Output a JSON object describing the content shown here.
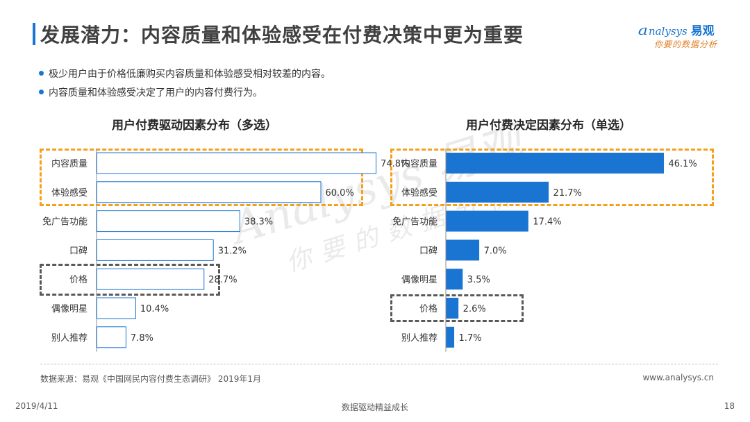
{
  "header": {
    "title": "发展潜力：内容质量和体验感受在付费决策中更为重要",
    "logo_mark": "a",
    "logo_word": "nalysys",
    "logo_cn": "易观",
    "logo_slogan": "你要的数据分析"
  },
  "bullets": [
    "极少用户由于价格低廉购买内容质量和体验感受相对较差的内容。",
    "内容质量和体验感受决定了用户的内容付费行为。"
  ],
  "watermark": {
    "line1": "Analysys 易观",
    "line2": "你要的数据分析"
  },
  "chart_data": [
    {
      "type": "bar",
      "orientation": "horizontal",
      "title": "用户付费驱动因素分布（多选）",
      "categories": [
        "内容质量",
        "体验感受",
        "免广告功能",
        "口碑",
        "价格",
        "偶像明星",
        "别人推荐"
      ],
      "values": [
        74.8,
        60.0,
        38.3,
        31.2,
        28.7,
        10.4,
        7.8
      ],
      "value_labels": [
        "74.8%",
        "60.0%",
        "38.3%",
        "31.2%",
        "28.7%",
        "10.4%",
        "7.8%"
      ],
      "unit": "%",
      "style": "outlined",
      "bar_color": "#1a74d1",
      "bar_fill": "#ffffff",
      "xlim": [
        0,
        80
      ],
      "grid": false,
      "highlight_groups": [
        {
          "categories": [
            "内容质量",
            "体验感受"
          ],
          "color": "#f5a01a"
        },
        {
          "categories": [
            "价格"
          ],
          "color": "#595959"
        }
      ]
    },
    {
      "type": "bar",
      "orientation": "horizontal",
      "title": "用户付费决定因素分布（单选）",
      "categories": [
        "内容质量",
        "体验感受",
        "免广告功能",
        "口碑",
        "偶像明星",
        "价格",
        "别人推荐"
      ],
      "values": [
        46.1,
        21.7,
        17.4,
        7.0,
        3.5,
        2.6,
        1.7
      ],
      "value_labels": [
        "46.1%",
        "21.7%",
        "17.4%",
        "7.0%",
        "3.5%",
        "2.6%",
        "1.7%"
      ],
      "unit": "%",
      "style": "filled",
      "bar_color": "#1a74d1",
      "bar_fill": "#1a74d1",
      "xlim": [
        0,
        50
      ],
      "grid": false,
      "highlight_groups": [
        {
          "categories": [
            "内容质量",
            "体验感受"
          ],
          "color": "#f5a01a"
        },
        {
          "categories": [
            "价格"
          ],
          "color": "#595959"
        }
      ]
    }
  ],
  "footer": {
    "source": "数据来源：易观《中国网民内容付费生态调研》 2019年1月",
    "website": "www.analysys.cn",
    "date": "2019/4/11",
    "center": "数据驱动精益成长",
    "page": "18"
  }
}
